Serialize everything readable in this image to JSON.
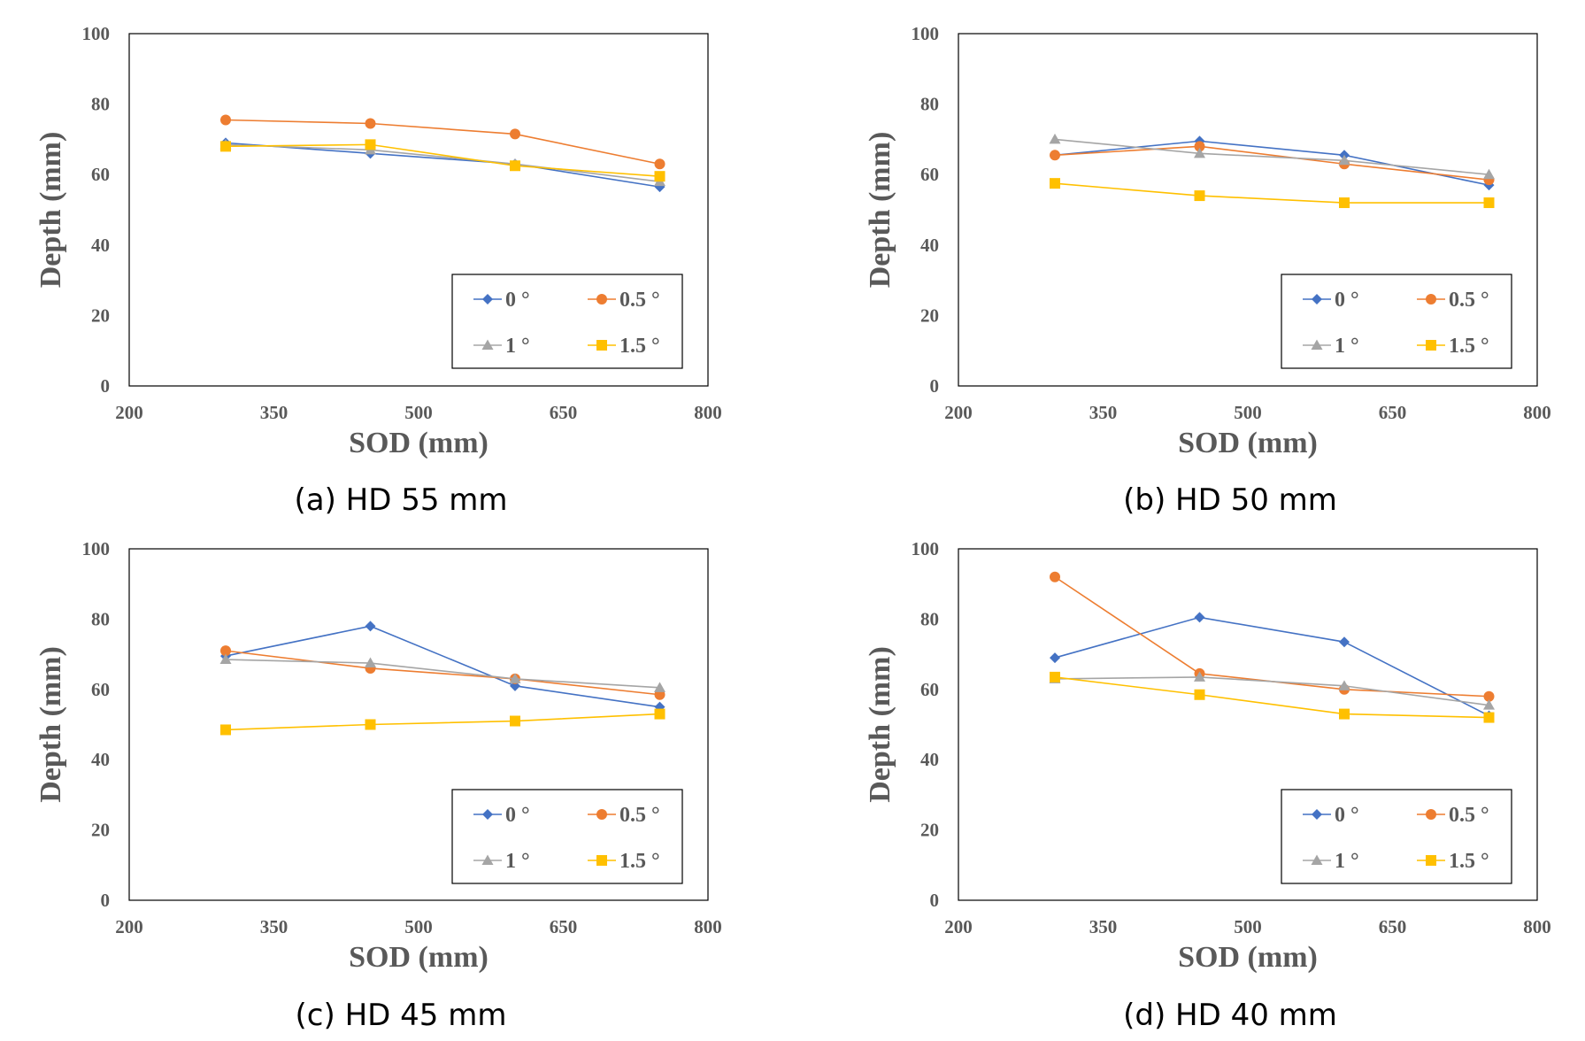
{
  "chart_data": [
    {
      "type": "line",
      "caption": "(a) HD 55 mm",
      "xlabel": "SOD (mm)",
      "ylabel": "Depth (mm)",
      "xlim": [
        200,
        800
      ],
      "ylim": [
        0,
        100
      ],
      "xticks": [
        "200",
        "350",
        "500",
        "650",
        "800"
      ],
      "yticks": [
        "0",
        "20",
        "40",
        "60",
        "80",
        "100"
      ],
      "x": [
        300,
        450,
        600,
        750
      ],
      "legend_position": "bottom-right",
      "series": [
        {
          "name": "0 °",
          "values": [
            69,
            66,
            63,
            56.5
          ]
        },
        {
          "name": "0.5 °",
          "values": [
            75.5,
            74.5,
            71.5,
            63
          ]
        },
        {
          "name": "1 °",
          "values": [
            68.5,
            67,
            63,
            58
          ]
        },
        {
          "name": "1.5 °",
          "values": [
            68,
            68.5,
            62.5,
            59.5
          ]
        }
      ]
    },
    {
      "type": "line",
      "caption": "(b) HD 50 mm",
      "xlabel": "SOD (mm)",
      "ylabel": "Depth (mm)",
      "xlim": [
        200,
        800
      ],
      "ylim": [
        0,
        100
      ],
      "xticks": [
        "200",
        "350",
        "500",
        "650",
        "800"
      ],
      "yticks": [
        "0",
        "20",
        "40",
        "60",
        "80",
        "100"
      ],
      "x": [
        300,
        450,
        600,
        750
      ],
      "legend_position": "bottom-right",
      "series": [
        {
          "name": "0 °",
          "values": [
            65.5,
            69.5,
            65.5,
            57
          ]
        },
        {
          "name": "0.5 °",
          "values": [
            65.5,
            68,
            63,
            58.5
          ]
        },
        {
          "name": "1 °",
          "values": [
            70,
            66,
            64,
            60
          ]
        },
        {
          "name": "1.5 °",
          "values": [
            57.5,
            54,
            52,
            52
          ]
        }
      ]
    },
    {
      "type": "line",
      "caption": "(c) HD 45 mm",
      "xlabel": "SOD (mm)",
      "ylabel": "Depth (mm)",
      "xlim": [
        200,
        800
      ],
      "ylim": [
        0,
        100
      ],
      "xticks": [
        "200",
        "350",
        "500",
        "650",
        "800"
      ],
      "yticks": [
        "0",
        "20",
        "40",
        "60",
        "80",
        "100"
      ],
      "x": [
        300,
        450,
        600,
        750
      ],
      "legend_position": "bottom-right",
      "series": [
        {
          "name": "0 °",
          "values": [
            69.5,
            78,
            61,
            55
          ]
        },
        {
          "name": "0.5 °",
          "values": [
            71,
            66,
            63,
            58.5
          ]
        },
        {
          "name": "1 °",
          "values": [
            68.5,
            67.5,
            63,
            60.5
          ]
        },
        {
          "name": "1.5 °",
          "values": [
            48.5,
            50,
            51,
            53
          ]
        }
      ]
    },
    {
      "type": "line",
      "caption": "(d) HD 40 mm",
      "xlabel": "SOD (mm)",
      "ylabel": "Depth (mm)",
      "xlim": [
        200,
        800
      ],
      "ylim": [
        0,
        100
      ],
      "xticks": [
        "200",
        "350",
        "500",
        "650",
        "800"
      ],
      "yticks": [
        "0",
        "20",
        "40",
        "60",
        "80",
        "100"
      ],
      "x": [
        300,
        450,
        600,
        750
      ],
      "legend_position": "bottom-right",
      "series": [
        {
          "name": "0 °",
          "values": [
            69,
            80.5,
            73.5,
            52.5
          ]
        },
        {
          "name": "0.5 °",
          "values": [
            92,
            64.5,
            60,
            58
          ]
        },
        {
          "name": "1 °",
          "values": [
            63,
            63.5,
            61,
            55.5
          ]
        },
        {
          "name": "1.5 °",
          "values": [
            63.5,
            58.5,
            53,
            52
          ]
        }
      ]
    }
  ],
  "style": {
    "series_colors": [
      "#4472c4",
      "#ed7d31",
      "#a5a5a5",
      "#ffc000"
    ],
    "series_markers": [
      "diamond",
      "circle",
      "triangle",
      "square"
    ],
    "axis_color": "#595959",
    "frame_color": "#000000"
  }
}
